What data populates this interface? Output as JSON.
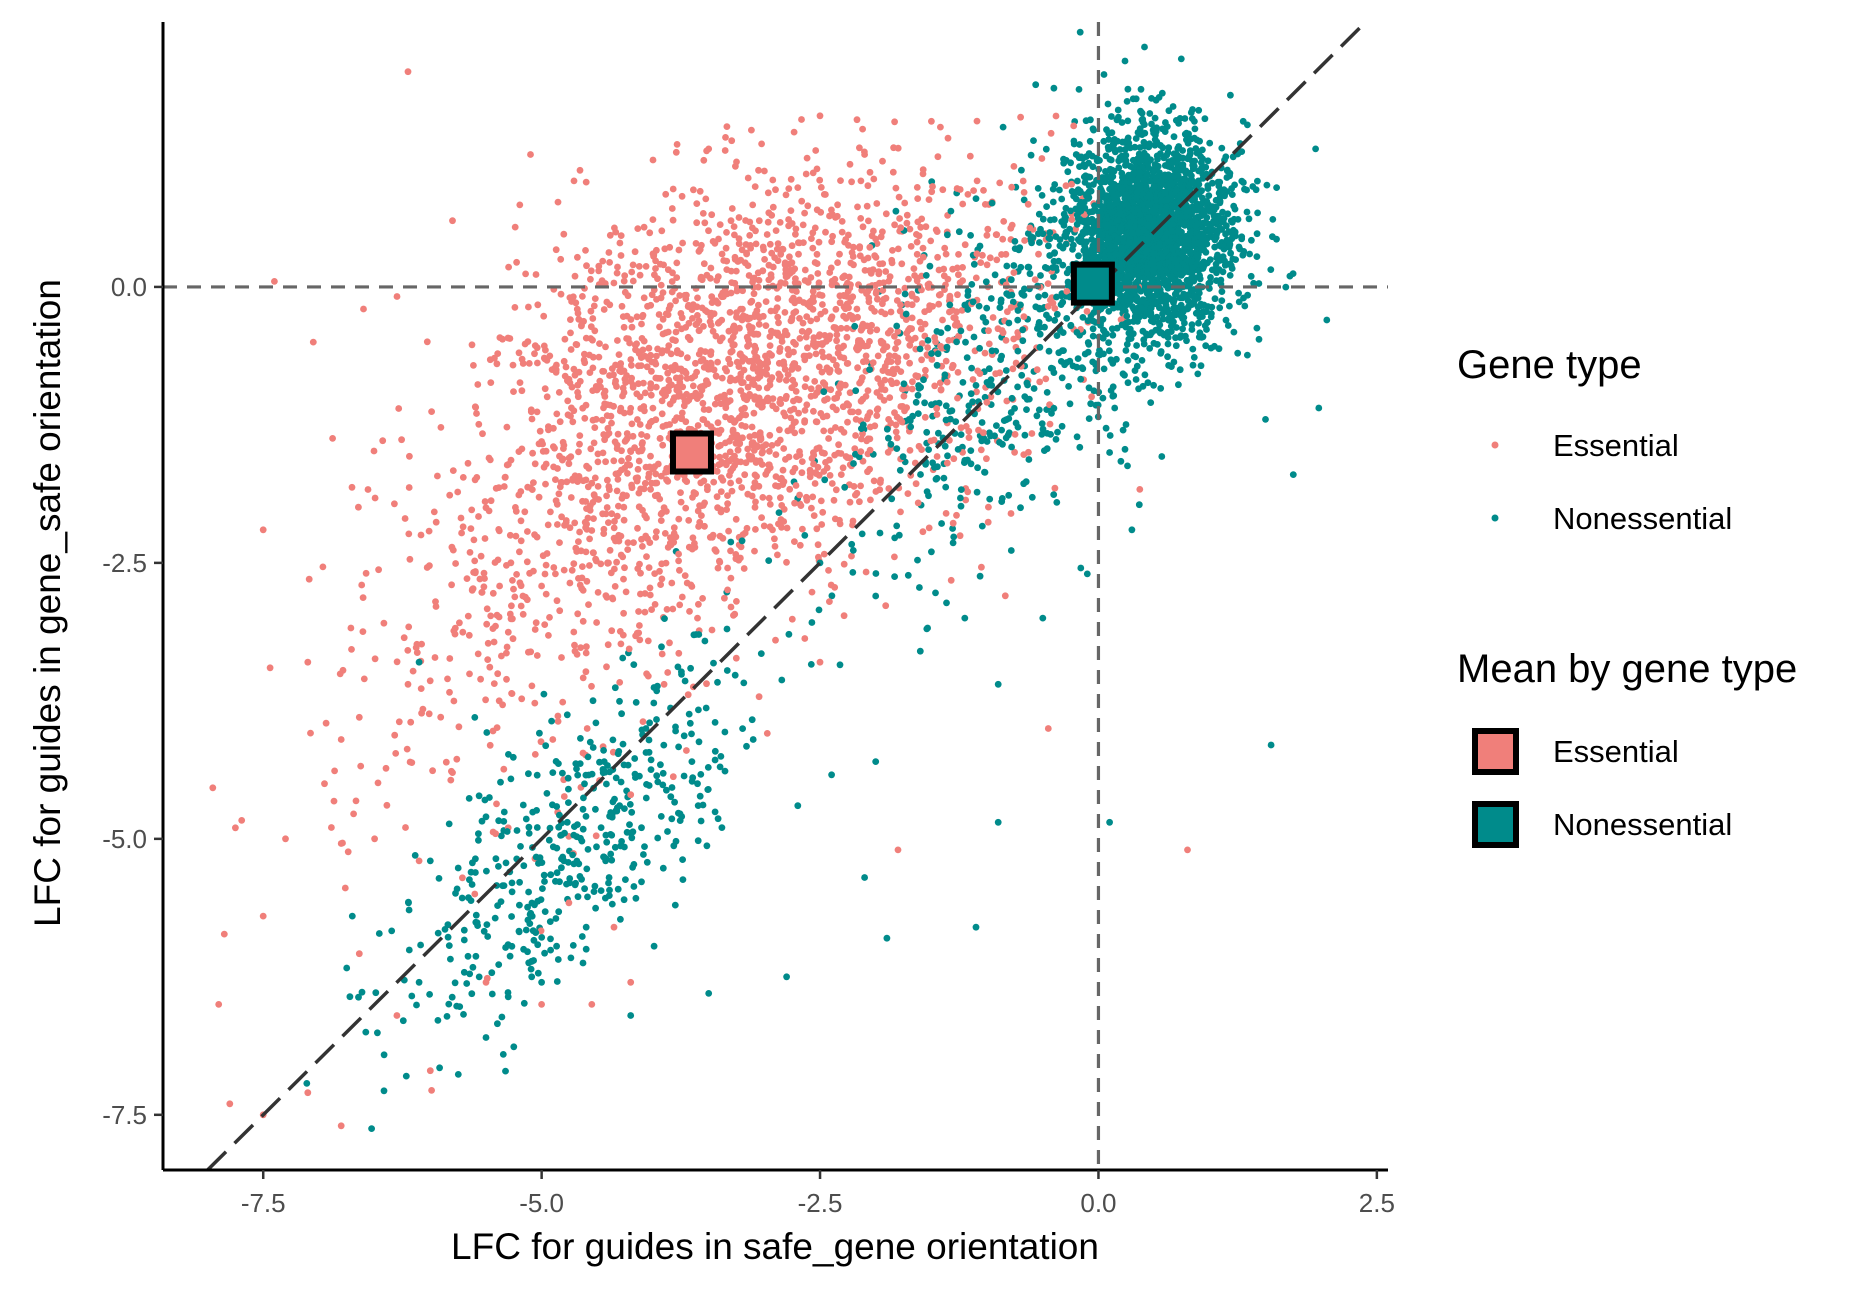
{
  "chart_data": {
    "type": "scatter",
    "xlabel": "LFC for guides in safe_gene orientation",
    "ylabel": "LFC for guides in gene_safe orientation",
    "xlim": [
      -8.4,
      2.6
    ],
    "ylim": [
      -8.0,
      2.4
    ],
    "x_ticks": [
      -7.5,
      -5.0,
      -2.5,
      0.0,
      2.5
    ],
    "y_ticks": [
      -7.5,
      -5.0,
      -2.5,
      0.0
    ],
    "x_tick_labels": [
      "-7.5",
      "-5.0",
      "-2.5",
      "0.0",
      "2.5"
    ],
    "y_tick_labels": [
      "-7.5",
      "-5.0",
      "-2.5",
      "0.0"
    ],
    "grid": false,
    "reference_lines": [
      {
        "type": "vertical",
        "x": 0.0,
        "style": "dashed",
        "color": "#666666"
      },
      {
        "type": "horizontal",
        "y": 0.0,
        "style": "dashed",
        "color": "#666666"
      },
      {
        "type": "diagonal",
        "slope": 1,
        "intercept": 0,
        "style": "dashed",
        "color": "#333333"
      }
    ],
    "legend_position": "right",
    "series": [
      {
        "name": "Essential",
        "color": "#F07F7A",
        "marker": "point",
        "approx_count": 2600,
        "center": [
          -3.1,
          -1.0
        ],
        "points": [
          [
            -6.2,
            1.95
          ],
          [
            -7.4,
            0.05
          ],
          [
            -7.05,
            -0.5
          ],
          [
            -6.6,
            -0.2
          ],
          [
            -7.5,
            -2.2
          ],
          [
            -7.1,
            -3.4
          ],
          [
            -6.95,
            -4.5
          ],
          [
            -7.75,
            -4.9
          ],
          [
            -7.3,
            -5.0
          ],
          [
            -7.5,
            -5.7
          ],
          [
            -7.9,
            -6.5
          ],
          [
            -7.8,
            -7.4
          ],
          [
            -7.5,
            -7.5
          ],
          [
            -6.8,
            -7.6
          ],
          [
            -7.1,
            -7.3
          ],
          [
            -6.3,
            -6.6
          ],
          [
            -6.0,
            -7.1
          ],
          [
            -5.5,
            -6.3
          ],
          [
            -5.0,
            -6.5
          ],
          [
            -4.55,
            -6.5
          ],
          [
            -4.2,
            -6.3
          ],
          [
            -5.8,
            0.6
          ],
          [
            -5.1,
            1.2
          ],
          [
            -4.6,
            0.95
          ],
          [
            -4.0,
            1.15
          ],
          [
            -3.5,
            1.25
          ],
          [
            -2.5,
            1.55
          ],
          [
            -2.1,
            1.2
          ],
          [
            -1.5,
            1.5
          ],
          [
            -3.0,
            1.05
          ],
          [
            -5.2,
            -2.4
          ],
          [
            -4.7,
            -3.3
          ],
          [
            -4.2,
            -4.6
          ],
          [
            -3.7,
            -4.2
          ],
          [
            -5.8,
            -4.4
          ],
          [
            -6.2,
            -3.6
          ],
          [
            -2.5,
            -3.4
          ],
          [
            -2.9,
            -3.2
          ],
          [
            -3.3,
            -2.9
          ],
          [
            -6.5,
            -5.0
          ],
          [
            -5.6,
            -5.5
          ],
          [
            -4.35,
            -5.8
          ],
          [
            -2.6,
            -0.4
          ],
          [
            -2.2,
            0.2
          ],
          [
            -1.8,
            -0.5
          ],
          [
            -1.4,
            -0.3
          ],
          [
            -1.0,
            0.2
          ],
          [
            -0.55,
            -0.75
          ],
          [
            -0.45,
            -4.0
          ],
          [
            -1.8,
            -5.1
          ],
          [
            0.8,
            -5.1
          ],
          [
            -3.5,
            -1.5
          ],
          [
            -4.2,
            -1.1
          ],
          [
            -4.7,
            -0.8
          ],
          [
            -3.9,
            -2.0
          ],
          [
            -2.9,
            -1.8
          ],
          [
            -3.2,
            -0.3
          ],
          [
            -4.0,
            0.3
          ],
          [
            -3.3,
            0.6
          ],
          [
            -2.7,
            0.9
          ],
          [
            -5.0,
            -1.4
          ],
          [
            -5.5,
            -2.0
          ],
          [
            -4.4,
            -2.5
          ],
          [
            -3.6,
            -3.0
          ],
          [
            -2.4,
            -2.7
          ],
          [
            -6.8,
            -4.1
          ],
          [
            -6.1,
            -5.2
          ],
          [
            -5.3,
            -4.9
          ],
          [
            -4.9,
            -4.1
          ],
          [
            -3.9,
            -3.6
          ]
        ]
      },
      {
        "name": "Nonessential",
        "color": "#008B8B",
        "marker": "point",
        "approx_count": 3300,
        "center": [
          0.45,
          0.45
        ],
        "points": [
          [
            -0.4,
            1.8
          ],
          [
            0.9,
            1.6
          ],
          [
            1.3,
            1.5
          ],
          [
            1.95,
            1.25
          ],
          [
            1.6,
            0.9
          ],
          [
            1.0,
            0.5
          ],
          [
            0.2,
            0.0
          ],
          [
            -0.3,
            0.6
          ],
          [
            0.6,
            1.1
          ],
          [
            0.8,
            -0.2
          ],
          [
            1.25,
            -0.6
          ],
          [
            0.4,
            -0.9
          ],
          [
            1.5,
            -1.2
          ],
          [
            1.75,
            -1.7
          ],
          [
            2.05,
            -0.3
          ],
          [
            1.55,
            -4.15
          ],
          [
            0.1,
            -4.85
          ],
          [
            -0.9,
            -4.85
          ],
          [
            -1.1,
            -5.8
          ],
          [
            -1.9,
            -5.9
          ],
          [
            -2.1,
            -5.35
          ],
          [
            -2.8,
            -6.25
          ],
          [
            -3.5,
            -6.4
          ],
          [
            -4.2,
            -6.6
          ],
          [
            -4.6,
            -6.0
          ],
          [
            -5.0,
            -6.3
          ],
          [
            -5.5,
            -6.8
          ],
          [
            -6.1,
            -6.3
          ],
          [
            -6.0,
            -5.2
          ],
          [
            -5.5,
            -4.8
          ],
          [
            -4.9,
            -4.4
          ],
          [
            -4.3,
            -4.7
          ],
          [
            -4.8,
            -5.2
          ],
          [
            -5.2,
            -5.6
          ],
          [
            -4.4,
            -5.4
          ],
          [
            -3.8,
            -5.6
          ],
          [
            -4.6,
            -5.8
          ],
          [
            -5.6,
            -3.9
          ],
          [
            -6.1,
            -3.4
          ],
          [
            -6.7,
            -5.7
          ],
          [
            -3.2,
            -2.3
          ],
          [
            -2.5,
            -2.5
          ],
          [
            -2.0,
            -2.8
          ],
          [
            -1.5,
            -2.4
          ],
          [
            -1.2,
            -3.0
          ],
          [
            -0.9,
            -3.6
          ],
          [
            -0.5,
            -3.0
          ],
          [
            -0.1,
            -2.6
          ],
          [
            0.3,
            -2.2
          ],
          [
            -0.7,
            -2.0
          ],
          [
            -1.0,
            -1.4
          ],
          [
            -1.7,
            -1.2
          ],
          [
            -2.2,
            -1.6
          ],
          [
            -0.4,
            -1.1
          ],
          [
            0.1,
            -1.5
          ],
          [
            -0.6,
            0.4
          ],
          [
            -1.1,
            0.8
          ],
          [
            -0.2,
            1.2
          ],
          [
            0.3,
            0.9
          ],
          [
            0.5,
            0.3
          ],
          [
            -2.7,
            -4.7
          ],
          [
            -2.0,
            -4.3
          ],
          [
            -1.6,
            -3.3
          ],
          [
            -3.1,
            -4.1
          ],
          [
            -3.6,
            -4.5
          ]
        ]
      }
    ],
    "means": [
      {
        "name": "Essential",
        "x": -3.65,
        "y": -1.5,
        "color": "#F07F7A"
      },
      {
        "name": "Nonessential",
        "x": -0.05,
        "y": 0.03,
        "color": "#008B8B"
      }
    ]
  },
  "legend": {
    "gene_type_title": "Gene type",
    "gene_type_items": [
      {
        "label": "Essential",
        "color": "#F07F7A"
      },
      {
        "label": "Nonessential",
        "color": "#008B8B"
      }
    ],
    "mean_title": "Mean by gene type",
    "mean_items": [
      {
        "label": "Essential",
        "color": "#F07F7A"
      },
      {
        "label": "Nonessential",
        "color": "#008B8B"
      }
    ]
  }
}
